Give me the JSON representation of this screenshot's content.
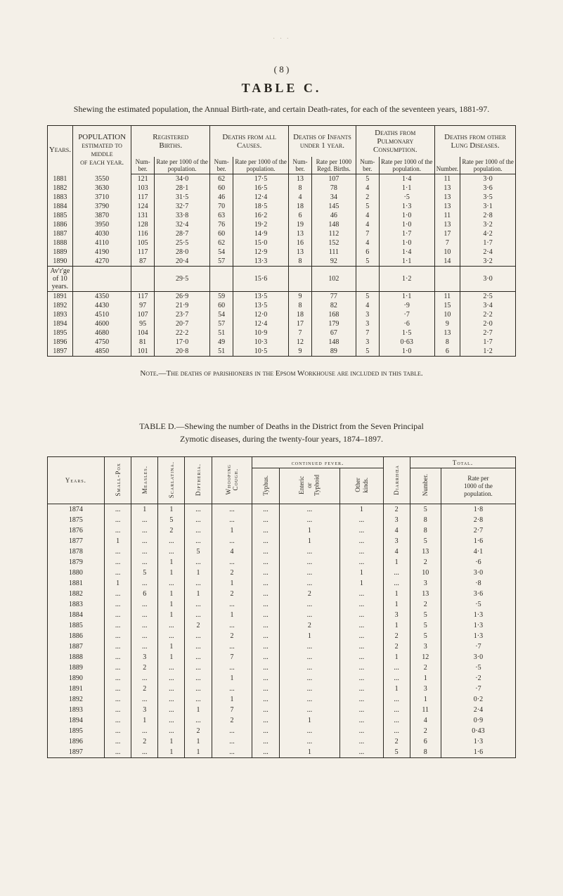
{
  "page_number": "( 8 )",
  "tableC": {
    "label": "TABLE C.",
    "subtitle": "Shewing the estimated population, the Annual Birth-rate, and certain Death-rates, for each of the seventeen years, 1881-97.",
    "col_groups": {
      "g1": "Years.",
      "g2_l1": "POPULATION",
      "g2_l2": "estimated to middle",
      "g2_l3": "of each year.",
      "g3_l1": "Registered",
      "g3_l2": "Births.",
      "g4_l1": "Deaths from all",
      "g4_l2": "Causes.",
      "g5_l1": "Deaths of Infants",
      "g5_l2": "under 1 year.",
      "g6_l1": "Deaths from",
      "g6_l2": "Pulmonary",
      "g6_l3": "Consumption.",
      "g7_l1": "Deaths from other",
      "g7_l2": "Lung Diseases."
    },
    "sub_cols": {
      "num": "Num-\nber.",
      "rate_pop": "Rate per\n1000 of the\npopulation.",
      "rate_births": "Rate per\n1000 Regd.\nBirths.",
      "number": "Number."
    },
    "rows_a": [
      [
        "1881",
        "3550",
        "121",
        "34·0",
        "62",
        "17·5",
        "13",
        "107",
        "5",
        "1·4",
        "11",
        "3·0"
      ],
      [
        "1882",
        "3630",
        "103",
        "28·1",
        "60",
        "16·5",
        "8",
        "78",
        "4",
        "1·1",
        "13",
        "3·6"
      ],
      [
        "1883",
        "3710",
        "117",
        "31·5",
        "46",
        "12·4",
        "4",
        "34",
        "2",
        "·5",
        "13",
        "3·5"
      ],
      [
        "1884",
        "3790",
        "124",
        "32·7",
        "70",
        "18·5",
        "18",
        "145",
        "5",
        "1·3",
        "13",
        "3·1"
      ],
      [
        "1885",
        "3870",
        "131",
        "33·8",
        "63",
        "16·2",
        "6",
        "46",
        "4",
        "1·0",
        "11",
        "2·8"
      ],
      [
        "1886",
        "3950",
        "128",
        "32·4",
        "76",
        "19·2",
        "19",
        "148",
        "4",
        "1·0",
        "13",
        "3·2"
      ],
      [
        "1887",
        "4030",
        "116",
        "28·7",
        "60",
        "14·9",
        "13",
        "112",
        "7",
        "1·7",
        "17",
        "4·2"
      ],
      [
        "1888",
        "4110",
        "105",
        "25·5",
        "62",
        "15·0",
        "16",
        "152",
        "4",
        "1·0",
        "7",
        "1·7"
      ],
      [
        "1889",
        "4190",
        "117",
        "28·0",
        "54",
        "12·9",
        "13",
        "111",
        "6",
        "1·4",
        "10",
        "2·4"
      ],
      [
        "1890",
        "4270",
        "87",
        "20·4",
        "57",
        "13·3",
        "8",
        "92",
        "5",
        "1·1",
        "14",
        "3·2"
      ]
    ],
    "avg_label": "Av'r'ge\nof 10\nyears.",
    "avg_row": [
      "",
      "",
      "29·5",
      "",
      "15·6",
      "",
      "102",
      "",
      "1·2",
      "",
      "3·0"
    ],
    "rows_b": [
      [
        "1891",
        "4350",
        "117",
        "26·9",
        "59",
        "13·5",
        "9",
        "77",
        "5",
        "1·1",
        "11",
        "2·5"
      ],
      [
        "1892",
        "4430",
        "97",
        "21·9",
        "60",
        "13·5",
        "8",
        "82",
        "4",
        "·9",
        "15",
        "3·4"
      ],
      [
        "1893",
        "4510",
        "107",
        "23·7",
        "54",
        "12·0",
        "18",
        "168",
        "3",
        "·7",
        "10",
        "2·2"
      ],
      [
        "1894",
        "4600",
        "95",
        "20·7",
        "57",
        "12·4",
        "17",
        "179",
        "3",
        "·6",
        "9",
        "2·0"
      ],
      [
        "1895",
        "4680",
        "104",
        "22·2",
        "51",
        "10·9",
        "7",
        "67",
        "7",
        "1·5",
        "13",
        "2·7"
      ],
      [
        "1896",
        "4750",
        "81",
        "17·0",
        "49",
        "10·3",
        "12",
        "148",
        "3",
        "0·63",
        "8",
        "1·7"
      ],
      [
        "1897",
        "4850",
        "101",
        "20·8",
        "51",
        "10·5",
        "9",
        "89",
        "5",
        "1·0",
        "6",
        "1·2"
      ]
    ],
    "note": "Note.—The deaths of parishioners in the Epsom Workhouse are included in this table."
  },
  "tableD": {
    "title_l1": "TABLE D.—Shewing the number of Deaths in the District from the Seven Principal",
    "title_l2": "Zymotic diseases, during the twenty-four years, 1874–1897.",
    "headers": {
      "years": "Years.",
      "smallpox": "Small-Pox",
      "measles": "Measles.",
      "scarlatina": "Scarlatina.",
      "diptheria": "Diptheria.",
      "whooping": "Whooping\nCough.",
      "cf_group": "continued fever.",
      "typhus": "Typhus.",
      "enteric": "Enteric\nor\nTyphoid",
      "other": "Other\nkinds.",
      "diarrhoea": "Diarrhœa",
      "total": "Total.",
      "number": "Number.",
      "rate": "Rate per\n1000 of the\npopulation."
    },
    "rows": [
      [
        "1874",
        "...",
        "1",
        "1",
        "...",
        "...",
        "...",
        "...",
        "1",
        "2",
        "5",
        "1·8"
      ],
      [
        "1875",
        "...",
        "...",
        "5",
        "...",
        "...",
        "...",
        "...",
        "...",
        "3",
        "8",
        "2·8"
      ],
      [
        "1876",
        "...",
        "...",
        "2",
        "...",
        "1",
        "...",
        "1",
        "...",
        "4",
        "8",
        "2·7"
      ],
      [
        "1877",
        "1",
        "...",
        "...",
        "...",
        "...",
        "...",
        "1",
        "...",
        "3",
        "5",
        "1·6"
      ],
      [
        "1878",
        "...",
        "...",
        "...",
        "5",
        "4",
        "...",
        "...",
        "...",
        "4",
        "13",
        "4·1"
      ],
      [
        "1879",
        "...",
        "...",
        "1",
        "...",
        "...",
        "...",
        "...",
        "...",
        "1",
        "2",
        "·6"
      ],
      [
        "1880",
        "...",
        "5",
        "1",
        "1",
        "2",
        "...",
        "...",
        "1",
        "...",
        "10",
        "3·0"
      ],
      [
        "1881",
        "1",
        "...",
        "...",
        "...",
        "1",
        "...",
        "...",
        "1",
        "...",
        "3",
        "·8"
      ],
      [
        "1882",
        "...",
        "6",
        "1",
        "1",
        "2",
        "...",
        "2",
        "...",
        "1",
        "13",
        "3·6"
      ],
      [
        "1883",
        "...",
        "...",
        "1",
        "...",
        "...",
        "...",
        "...",
        "...",
        "1",
        "2",
        "·5"
      ],
      [
        "1884",
        "...",
        "...",
        "1",
        "...",
        "1",
        "...",
        "...",
        "...",
        "3",
        "5",
        "1·3"
      ],
      [
        "1885",
        "...",
        "...",
        "...",
        "2",
        "...",
        "...",
        "2",
        "...",
        "1",
        "5",
        "1·3"
      ],
      [
        "1886",
        "...",
        "...",
        "...",
        "...",
        "2",
        "...",
        "1",
        "...",
        "2",
        "5",
        "1·3"
      ],
      [
        "1887",
        "...",
        "...",
        "1",
        "...",
        "...",
        "...",
        "...",
        "...",
        "2",
        "3",
        "·7"
      ],
      [
        "1888",
        "...",
        "3",
        "1",
        "...",
        "7",
        "...",
        "...",
        "...",
        "1",
        "12",
        "3·0"
      ],
      [
        "1889",
        "...",
        "2",
        "...",
        "...",
        "...",
        "...",
        "...",
        "...",
        "...",
        "2",
        "·5"
      ],
      [
        "1890",
        "...",
        "...",
        "...",
        "...",
        "1",
        "...",
        "...",
        "...",
        "...",
        "1",
        "·2"
      ],
      [
        "1891",
        "...",
        "2",
        "...",
        "...",
        "...",
        "...",
        "...",
        "...",
        "1",
        "3",
        "·7"
      ],
      [
        "1892",
        "...",
        "...",
        "...",
        "...",
        "1",
        "...",
        "...",
        "...",
        "...",
        "1",
        "0·2"
      ],
      [
        "1893",
        "...",
        "3",
        "...",
        "1",
        "7",
        "...",
        "...",
        "...",
        "...",
        "11",
        "2·4"
      ],
      [
        "1894",
        "...",
        "1",
        "...",
        "...",
        "2",
        "...",
        "1",
        "...",
        "...",
        "4",
        "0·9"
      ],
      [
        "1895",
        "...",
        "...",
        "...",
        "2",
        "...",
        "...",
        "...",
        "...",
        "...",
        "2",
        "0·43"
      ],
      [
        "1896",
        "...",
        "2",
        "1",
        "1",
        "...",
        "...",
        "...",
        "...",
        "2",
        "6",
        "1·3"
      ],
      [
        "1897",
        "...",
        "...",
        "1",
        "1",
        "...",
        "...",
        "1",
        "...",
        "5",
        "8",
        "1·6"
      ]
    ]
  }
}
